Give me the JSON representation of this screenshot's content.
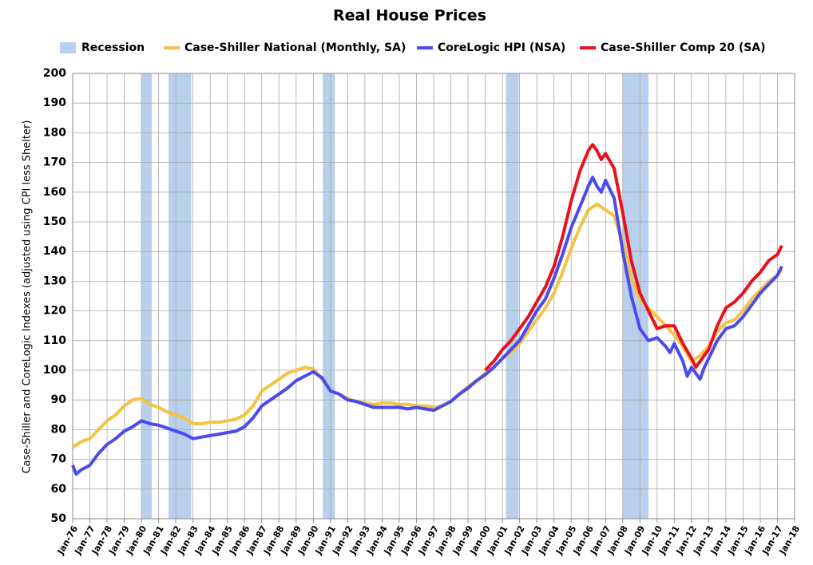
{
  "chart_data": {
    "type": "line",
    "title": "Real House Prices",
    "ylabel": "Case-Shiller and CoreLogic Indexes (adjusted using CPI less Shelter)",
    "xlim": [
      1976,
      2018
    ],
    "ylim": [
      50,
      200
    ],
    "yticks": [
      50,
      60,
      70,
      80,
      90,
      100,
      110,
      120,
      130,
      140,
      150,
      160,
      170,
      180,
      190,
      200
    ],
    "xticks": [
      {
        "value": 1976,
        "label": "Jan-76"
      },
      {
        "value": 1977,
        "label": "Jan-77"
      },
      {
        "value": 1978,
        "label": "Jan-78"
      },
      {
        "value": 1979,
        "label": "Jan-79"
      },
      {
        "value": 1980,
        "label": "Jan-80"
      },
      {
        "value": 1981,
        "label": "Jan-81"
      },
      {
        "value": 1982,
        "label": "Jan-82"
      },
      {
        "value": 1983,
        "label": "Jan-83"
      },
      {
        "value": 1984,
        "label": "Jan-84"
      },
      {
        "value": 1985,
        "label": "Jan-85"
      },
      {
        "value": 1986,
        "label": "Jan-86"
      },
      {
        "value": 1987,
        "label": "Jan-87"
      },
      {
        "value": 1988,
        "label": "Jan-88"
      },
      {
        "value": 1989,
        "label": "Jan-89"
      },
      {
        "value": 1990,
        "label": "Jan-90"
      },
      {
        "value": 1991,
        "label": "Jan-91"
      },
      {
        "value": 1992,
        "label": "Jan-92"
      },
      {
        "value": 1993,
        "label": "Jan-93"
      },
      {
        "value": 1994,
        "label": "Jan-94"
      },
      {
        "value": 1995,
        "label": "Jan-95"
      },
      {
        "value": 1996,
        "label": "Jan-96"
      },
      {
        "value": 1997,
        "label": "Jan-97"
      },
      {
        "value": 1998,
        "label": "Jan-98"
      },
      {
        "value": 1999,
        "label": "Jan-99"
      },
      {
        "value": 2000,
        "label": "Jan-00"
      },
      {
        "value": 2001,
        "label": "Jan-01"
      },
      {
        "value": 2002,
        "label": "Jan-02"
      },
      {
        "value": 2003,
        "label": "Jan-03"
      },
      {
        "value": 2004,
        "label": "Jan-04"
      },
      {
        "value": 2005,
        "label": "Jan-05"
      },
      {
        "value": 2006,
        "label": "Jan-06"
      },
      {
        "value": 2007,
        "label": "Jan-07"
      },
      {
        "value": 2008,
        "label": "Jan-08"
      },
      {
        "value": 2009,
        "label": "Jan-09"
      },
      {
        "value": 2010,
        "label": "Jan-10"
      },
      {
        "value": 2011,
        "label": "Jan-11"
      },
      {
        "value": 2012,
        "label": "Jan-12"
      },
      {
        "value": 2013,
        "label": "Jan-13"
      },
      {
        "value": 2014,
        "label": "Jan-14"
      },
      {
        "value": 2015,
        "label": "Jan-15"
      },
      {
        "value": 2016,
        "label": "Jan-16"
      },
      {
        "value": 2017,
        "label": "Jan-17"
      },
      {
        "value": 2018,
        "label": "Jan-18"
      }
    ],
    "grid": true,
    "recessions": {
      "name": "Recession",
      "color": "#b8d0ec",
      "spans": [
        [
          1980.0,
          1980.6
        ],
        [
          1981.58,
          1982.9
        ],
        [
          1990.55,
          1991.25
        ],
        [
          2001.2,
          2001.95
        ],
        [
          2008.0,
          2009.5
        ]
      ]
    },
    "series": [
      {
        "name": "Case-Shiller National (Monthly, SA)",
        "color": "#f5c242",
        "x": [
          1976,
          1976.5,
          1977,
          1977.5,
          1978,
          1978.5,
          1979,
          1979.5,
          1980,
          1980.5,
          1981,
          1981.5,
          1982,
          1982.5,
          1983,
          1983.5,
          1984,
          1984.5,
          1985,
          1985.5,
          1986,
          1986.5,
          1987,
          1987.5,
          1988,
          1988.5,
          1989,
          1989.5,
          1990,
          1990.5,
          1991,
          1991.5,
          1992,
          1992.5,
          1993,
          1993.5,
          1994,
          1994.5,
          1995,
          1995.5,
          1996,
          1996.5,
          1997,
          1997.5,
          1998,
          1998.5,
          1999,
          1999.5,
          2000,
          2000.5,
          2001,
          2001.5,
          2002,
          2002.5,
          2003,
          2003.5,
          2004,
          2004.5,
          2005,
          2005.5,
          2006,
          2006.5,
          2007,
          2007.5,
          2008,
          2008.5,
          2009,
          2009.5,
          2010,
          2010.5,
          2011,
          2011.5,
          2012,
          2012.5,
          2013,
          2013.5,
          2014,
          2014.5,
          2015,
          2015.5,
          2016,
          2016.5,
          2017,
          2017.25
        ],
        "values": [
          74,
          76,
          77,
          80,
          83,
          85,
          88,
          90,
          90.5,
          88.5,
          87.5,
          86,
          85,
          84,
          82,
          82,
          82.5,
          82.5,
          83,
          83.5,
          85,
          88,
          93,
          95,
          97,
          99,
          100,
          101,
          100.5,
          97,
          93,
          92,
          90.5,
          89.5,
          89,
          88.5,
          89,
          89,
          88.5,
          88.5,
          88,
          88,
          87.5,
          88,
          89.5,
          92,
          94.5,
          96.5,
          99,
          101,
          104,
          106,
          109,
          113,
          117,
          121,
          126,
          133,
          141,
          148,
          154,
          156,
          154,
          152,
          143,
          131,
          124,
          121,
          118,
          115,
          112,
          108,
          103,
          105,
          108,
          113,
          116,
          117,
          120,
          124,
          127,
          130,
          132,
          134
        ]
      },
      {
        "name": "CoreLogic HPI (NSA)",
        "color": "#4a4af0",
        "x": [
          1976,
          1976.2,
          1976.5,
          1977,
          1977.5,
          1978,
          1978.5,
          1979,
          1979.5,
          1980,
          1980.5,
          1981,
          1981.5,
          1982,
          1982.5,
          1983,
          1983.5,
          1984,
          1984.5,
          1985,
          1985.5,
          1986,
          1986.5,
          1987,
          1987.5,
          1988,
          1988.5,
          1989,
          1989.5,
          1990,
          1990.5,
          1991,
          1991.5,
          1992,
          1992.5,
          1993,
          1993.5,
          1994,
          1994.5,
          1995,
          1995.5,
          1996,
          1996.5,
          1997,
          1997.5,
          1998,
          1998.5,
          1999,
          1999.5,
          2000,
          2000.5,
          2001,
          2001.5,
          2002,
          2002.5,
          2003,
          2003.5,
          2004,
          2004.5,
          2005,
          2005.5,
          2006,
          2006.25,
          2006.5,
          2006.75,
          2007,
          2007.5,
          2008,
          2008.5,
          2009,
          2009.5,
          2010,
          2010.5,
          2010.75,
          2011,
          2011.5,
          2011.75,
          2012,
          2012.5,
          2012.75,
          2013,
          2013.5,
          2014,
          2014.5,
          2015,
          2015.5,
          2016,
          2016.5,
          2017,
          2017.25
        ],
        "values": [
          68,
          65,
          66.5,
          68,
          72,
          75,
          77,
          79.5,
          81,
          83,
          82,
          81.5,
          80.5,
          79.5,
          78.5,
          77,
          77.5,
          78,
          78.5,
          79,
          79.5,
          81,
          84,
          88,
          90,
          92,
          94,
          96.5,
          98,
          99.5,
          97.5,
          93,
          92,
          90,
          89.5,
          88.5,
          87.5,
          87.5,
          87.5,
          87.5,
          87,
          87.5,
          87,
          86.5,
          88,
          89.5,
          92,
          94,
          96.5,
          98.5,
          101,
          104,
          107,
          110,
          115,
          120,
          124,
          131,
          139,
          148,
          155,
          162,
          165,
          162,
          160,
          164,
          158,
          140,
          125,
          114,
          110,
          111,
          108,
          106,
          109,
          103,
          98,
          101,
          97,
          101,
          104,
          110,
          114,
          115,
          118,
          122,
          126,
          129,
          132,
          135
        ]
      },
      {
        "name": "Case-Shiller Comp 20  (SA)",
        "color": "#e8121e",
        "x": [
          2000,
          2000.5,
          2001,
          2001.5,
          2002,
          2002.5,
          2003,
          2003.5,
          2004,
          2004.5,
          2005,
          2005.5,
          2006,
          2006.25,
          2006.5,
          2006.75,
          2007,
          2007.5,
          2008,
          2008.5,
          2009,
          2009.5,
          2010,
          2010.5,
          2011,
          2011.5,
          2012,
          2012.25,
          2012.5,
          2013,
          2013.5,
          2014,
          2014.5,
          2015,
          2015.5,
          2016,
          2016.5,
          2017,
          2017.25
        ],
        "values": [
          100,
          103,
          107,
          110,
          114,
          118,
          123,
          128,
          135,
          145,
          157,
          167,
          174,
          176,
          174,
          171,
          173,
          168,
          153,
          137,
          126,
          120,
          114,
          115,
          115,
          109,
          104,
          101,
          103,
          107,
          115,
          121,
          123,
          126,
          130,
          133,
          137,
          139,
          142
        ]
      }
    ]
  }
}
